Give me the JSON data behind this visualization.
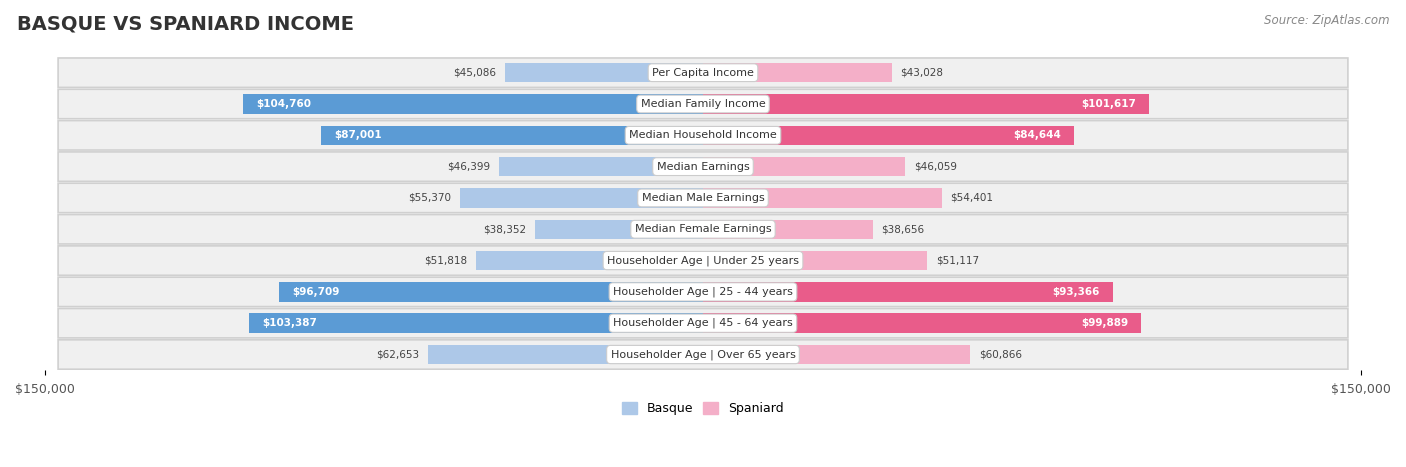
{
  "title": "BASQUE VS SPANIARD INCOME",
  "source": "Source: ZipAtlas.com",
  "categories": [
    "Per Capita Income",
    "Median Family Income",
    "Median Household Income",
    "Median Earnings",
    "Median Male Earnings",
    "Median Female Earnings",
    "Householder Age | Under 25 years",
    "Householder Age | 25 - 44 years",
    "Householder Age | 45 - 64 years",
    "Householder Age | Over 65 years"
  ],
  "basque_values": [
    45086,
    104760,
    87001,
    46399,
    55370,
    38352,
    51818,
    96709,
    103387,
    62653
  ],
  "spaniard_values": [
    43028,
    101617,
    84644,
    46059,
    54401,
    38656,
    51117,
    93366,
    99889,
    60866
  ],
  "basque_color_light": "#adc8e8",
  "basque_color_dark": "#5b9bd5",
  "spaniard_color_light": "#f4afc8",
  "spaniard_color_dark": "#e95c8a",
  "basque_inside_threshold": 70000,
  "spaniard_inside_threshold": 70000,
  "max_value": 150000,
  "bar_height": 0.62,
  "background_color": "#f0f0f0",
  "row_bg_color": "#e8e8e8",
  "row_inner_color": "#f8f8f8",
  "title_fontsize": 14,
  "label_fontsize": 8,
  "value_fontsize": 7.5,
  "legend_fontsize": 9,
  "axis_tick_fontsize": 9
}
